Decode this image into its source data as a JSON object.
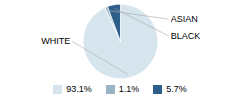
{
  "chart_data": {
    "type": "pie",
    "categories": [
      "WHITE",
      "ASIAN",
      "BLACK"
    ],
    "values": [
      93.1,
      1.1,
      5.7
    ],
    "colors": [
      "#d6e4ee",
      "#9ab4c5",
      "#2e5f8a"
    ],
    "value_labels": [
      "93.1%",
      "1.1%",
      "5.7%"
    ],
    "legend": "bottom"
  }
}
